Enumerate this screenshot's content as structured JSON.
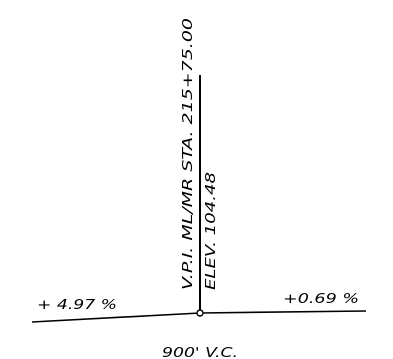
{
  "profile": {
    "vpi_station_label": "V.P.I. ML/MR STA. 215+75.00",
    "vpi_elevation_label": "ELEV. 104.48",
    "grade_in_label": "+ 4.97 %",
    "grade_out_label": "+0.69 %",
    "vertical_curve_label": "900' V.C."
  },
  "colors": {
    "line": "#000000",
    "text": "#000000",
    "background": "#ffffff"
  }
}
